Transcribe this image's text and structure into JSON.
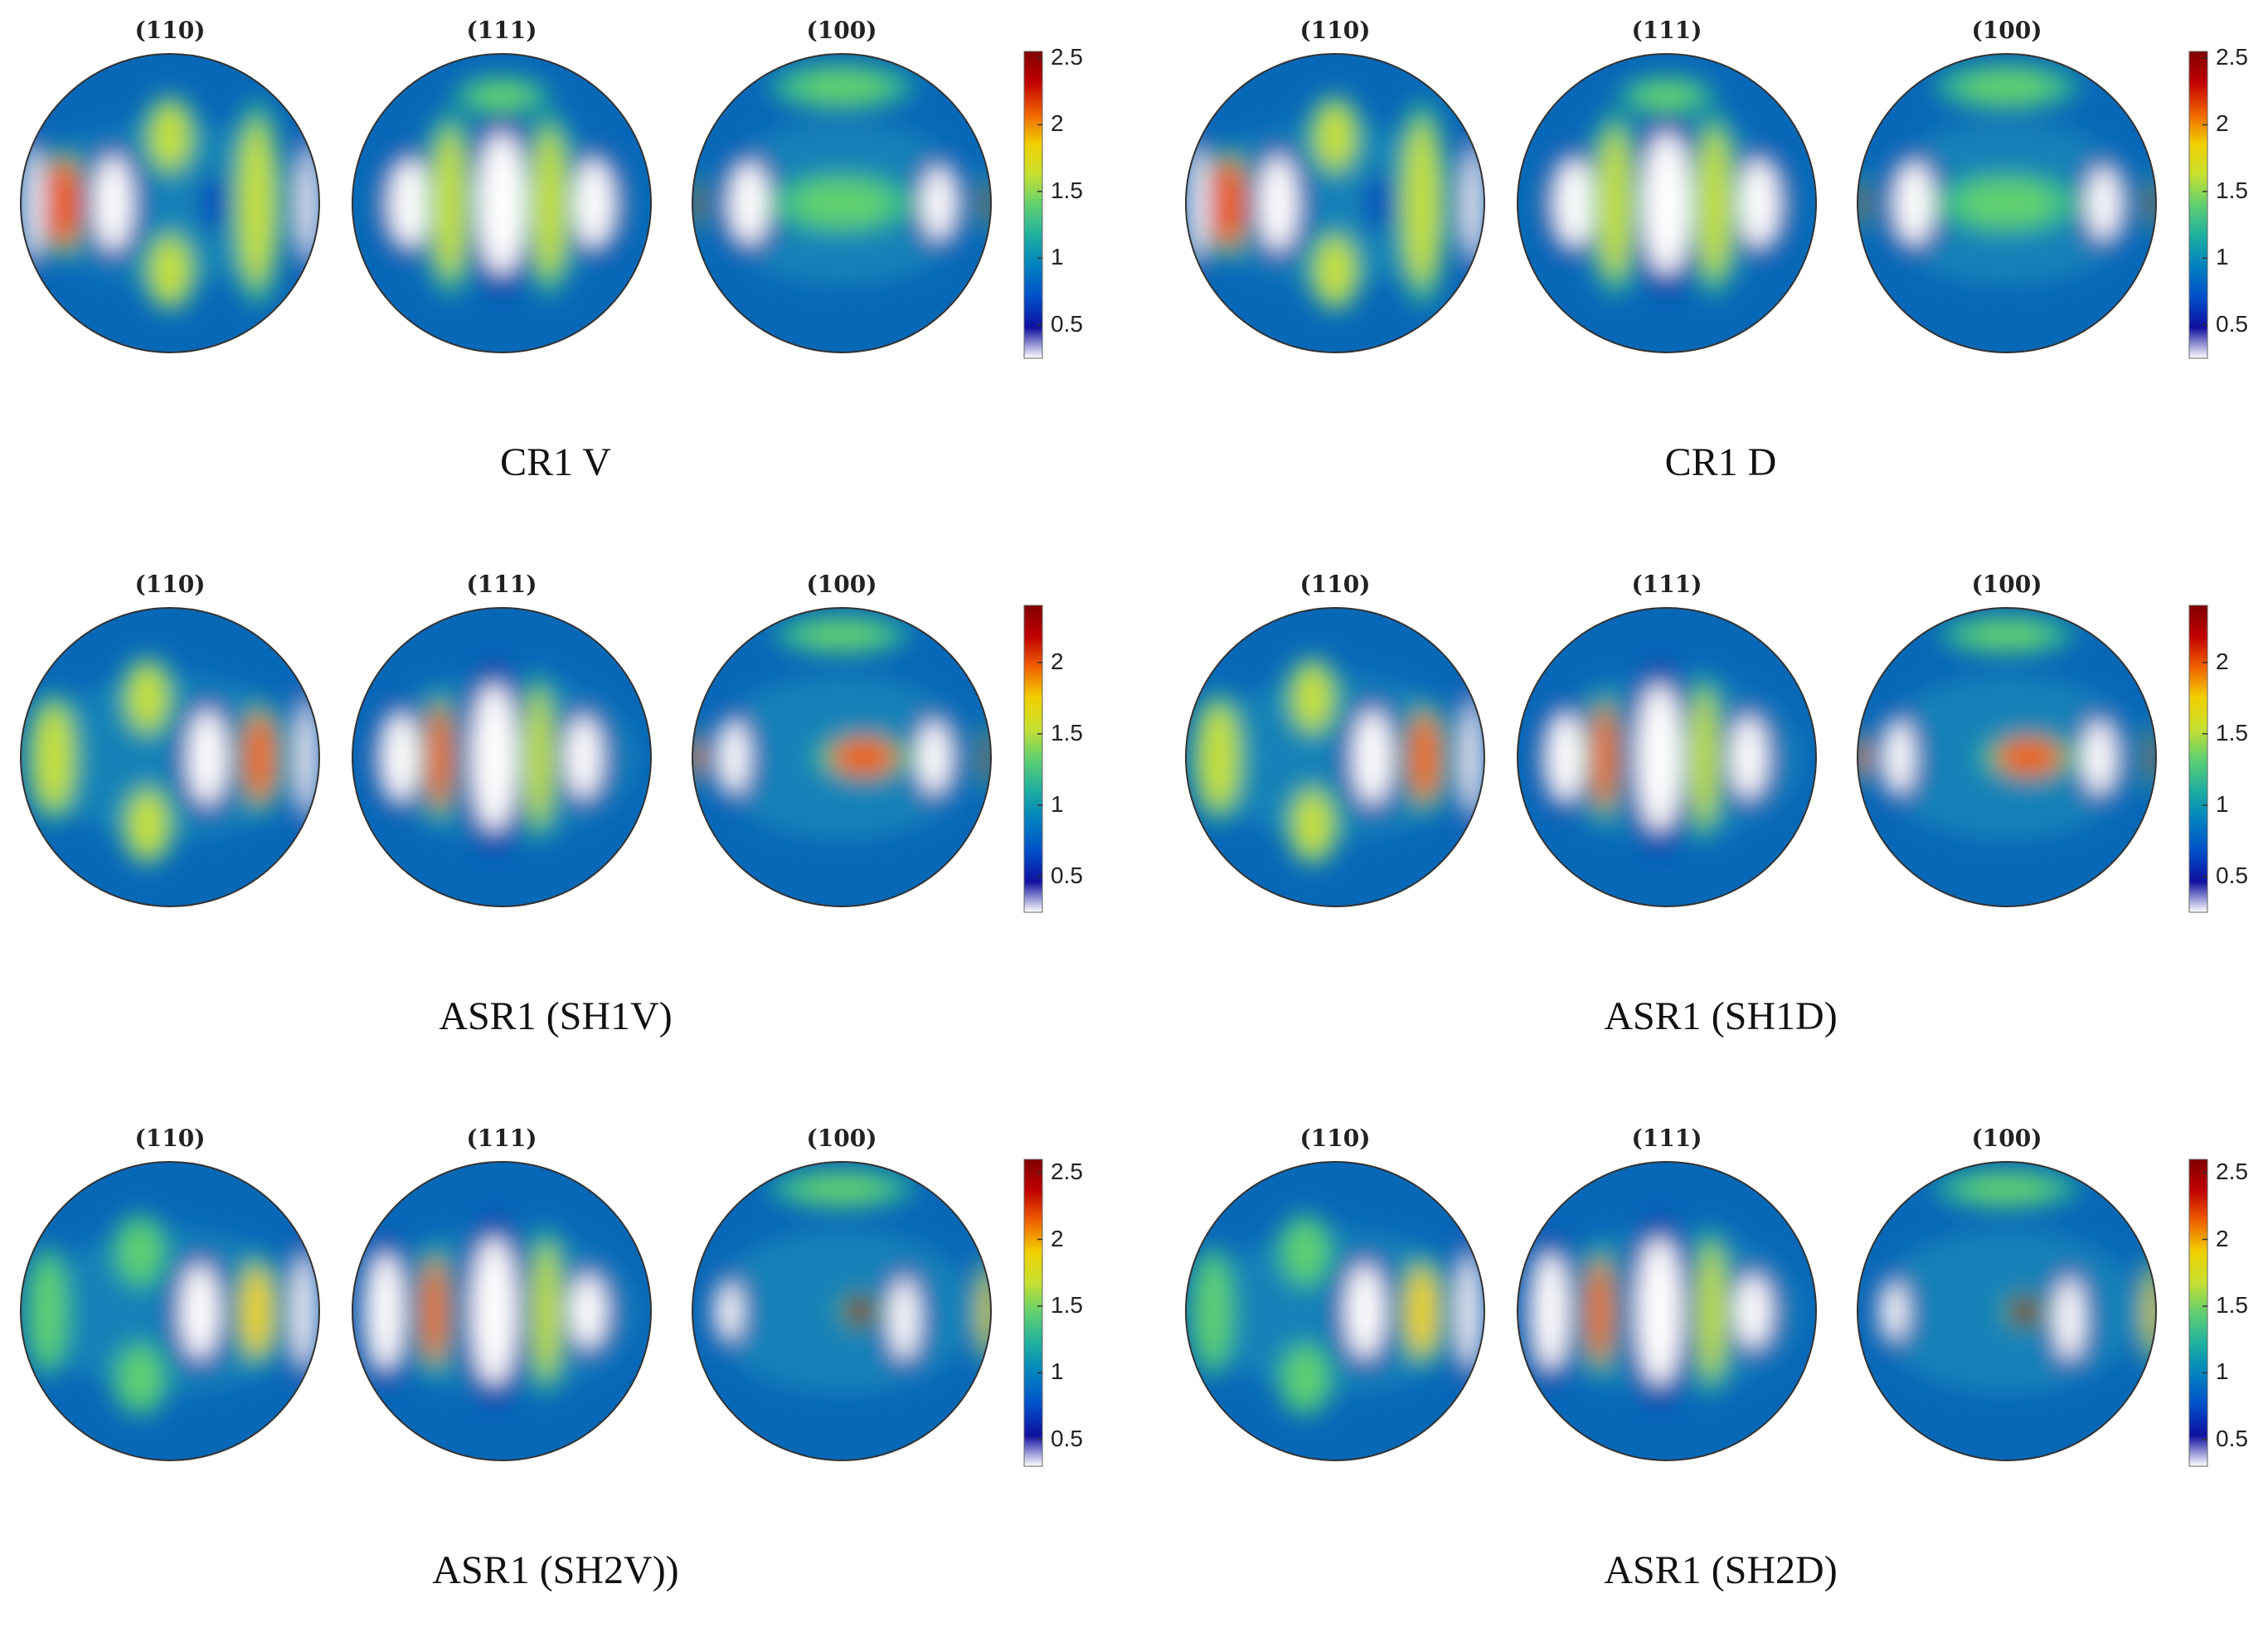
{
  "figure": {
    "panels": [
      {
        "caption": "CR1 V",
        "pole_figures": [
          {
            "label": "(110)",
            "max_cell": "left-rim"
          },
          {
            "label": "(111)",
            "max_cell": "center"
          },
          {
            "label": "(100)",
            "max_cell": "edges"
          }
        ],
        "colorbar": {
          "min": 0.25,
          "max": 2.55,
          "ticks": [
            "0.5",
            "1",
            "1.5",
            "2",
            "2.5"
          ]
        }
      },
      {
        "caption": "CR1 D",
        "pole_figures": [
          {
            "label": "(110)"
          },
          {
            "label": "(111)"
          },
          {
            "label": "(100)"
          }
        ],
        "colorbar": {
          "min": 0.25,
          "max": 2.55,
          "ticks": [
            "0.5",
            "1",
            "1.5",
            "2",
            "2.5"
          ]
        }
      },
      {
        "caption": "ASR1 (SH1V)",
        "pole_figures": [
          {
            "label": "(110)"
          },
          {
            "label": "(111)"
          },
          {
            "label": "(100)"
          }
        ],
        "colorbar": {
          "min": 0.25,
          "max": 2.4,
          "ticks": [
            "0.5",
            "1",
            "1.5",
            "2"
          ]
        }
      },
      {
        "caption": "ASR1 (SH1D)",
        "pole_figures": [
          {
            "label": "(110)"
          },
          {
            "label": "(111)"
          },
          {
            "label": "(100)"
          }
        ],
        "colorbar": {
          "min": 0.25,
          "max": 2.4,
          "ticks": [
            "0.5",
            "1",
            "1.5",
            "2"
          ]
        }
      },
      {
        "caption": "ASR1 (SH2V))",
        "pole_figures": [
          {
            "label": "(110)"
          },
          {
            "label": "(111)"
          },
          {
            "label": "(100)"
          }
        ],
        "colorbar": {
          "min": 0.3,
          "max": 2.6,
          "ticks": [
            "0.5",
            "1",
            "1.5",
            "2",
            "2.5"
          ]
        }
      },
      {
        "caption": "ASR1 (SH2D)",
        "pole_figures": [
          {
            "label": "(110)"
          },
          {
            "label": "(111)"
          },
          {
            "label": "(100)"
          }
        ],
        "colorbar": {
          "min": 0.3,
          "max": 2.6,
          "ticks": [
            "0.5",
            "1",
            "1.5",
            "2",
            "2.5"
          ]
        }
      }
    ],
    "colormap": [
      "#ffffff",
      "#1010a0",
      "#0050c8",
      "#0080c0",
      "#20b0a0",
      "#60d070",
      "#c8e030",
      "#f0d000",
      "#f06000",
      "#c00000",
      "#800000"
    ]
  }
}
